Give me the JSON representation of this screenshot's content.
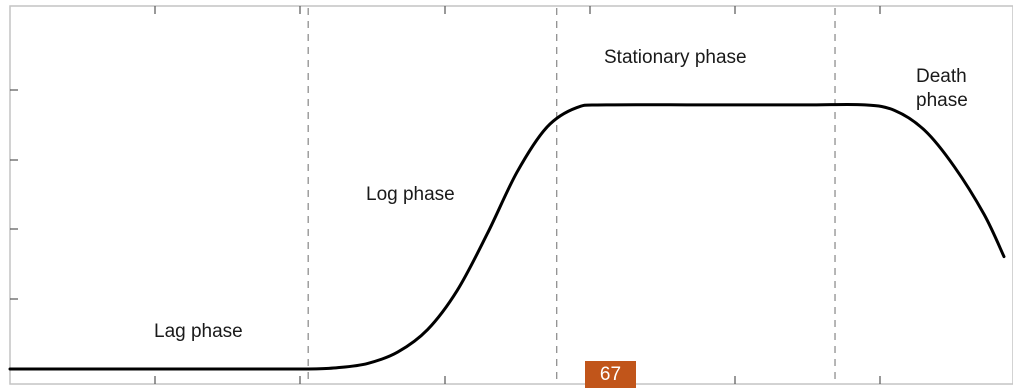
{
  "chart_data": {
    "type": "line",
    "title": "",
    "xlabel": "",
    "ylabel": "",
    "grid": false,
    "legend": "none",
    "xlim": [
      0,
      100
    ],
    "ylim": [
      0,
      100
    ],
    "series": [
      {
        "values": [
          {
            "x": 0,
            "y": 0
          },
          {
            "x": 10,
            "y": 0
          },
          {
            "x": 20,
            "y": 0
          },
          {
            "x": 30,
            "y": 0
          },
          {
            "x": 33,
            "y": 0.5
          },
          {
            "x": 36,
            "y": 2
          },
          {
            "x": 39,
            "y": 6
          },
          {
            "x": 42,
            "y": 14
          },
          {
            "x": 45,
            "y": 28
          },
          {
            "x": 48,
            "y": 48
          },
          {
            "x": 51,
            "y": 70
          },
          {
            "x": 54,
            "y": 86
          },
          {
            "x": 57,
            "y": 93
          },
          {
            "x": 60,
            "y": 94
          },
          {
            "x": 70,
            "y": 94
          },
          {
            "x": 80,
            "y": 94
          },
          {
            "x": 86,
            "y": 94
          },
          {
            "x": 89,
            "y": 92
          },
          {
            "x": 92,
            "y": 85
          },
          {
            "x": 95,
            "y": 72
          },
          {
            "x": 98,
            "y": 55
          },
          {
            "x": 100,
            "y": 40
          }
        ]
      }
    ],
    "phase_boundaries": [
      30,
      55,
      83
    ],
    "phase_labels": [
      {
        "text": "Lag phase"
      },
      {
        "text": "Log phase"
      },
      {
        "text": "Stationary phase"
      },
      {
        "text": "Death phase"
      }
    ],
    "colors": {
      "curve": "#000000",
      "divider": "#8f8f8f",
      "badge": "#c1551a"
    }
  },
  "page_number": "67"
}
